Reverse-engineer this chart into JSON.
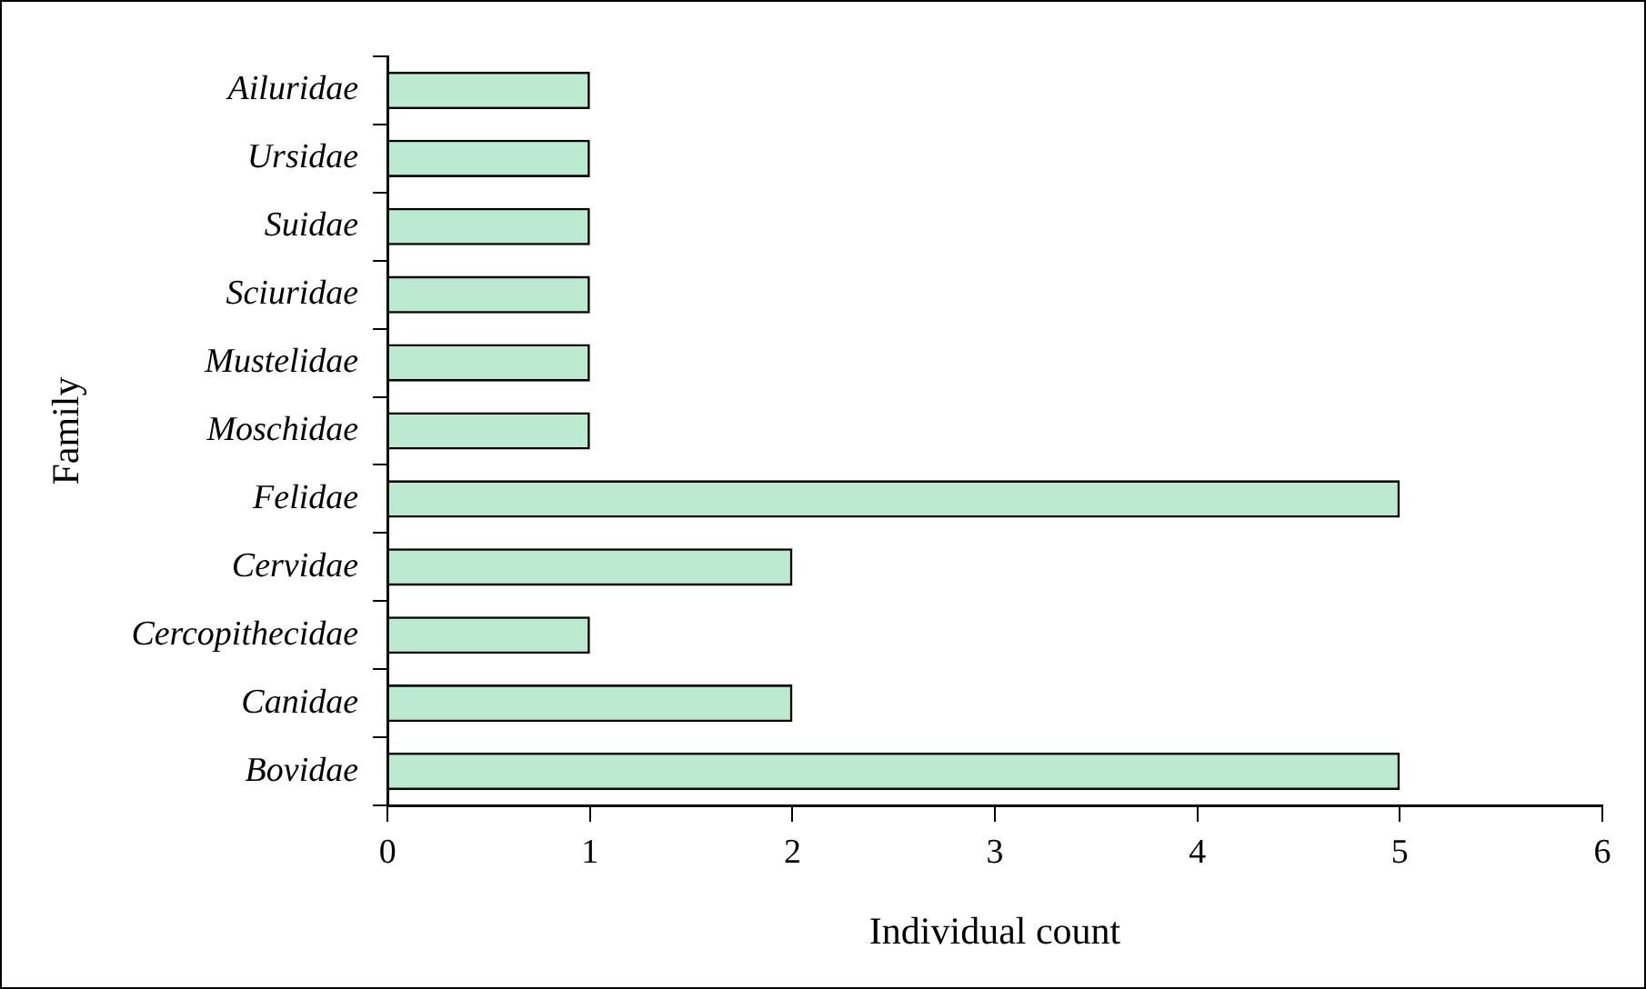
{
  "chart_data": {
    "type": "bar",
    "orientation": "horizontal",
    "xlabel": "Individual count",
    "ylabel": "Family",
    "categories": [
      "Ailuridae",
      "Ursidae",
      "Suidae",
      "Sciuridae",
      "Mustelidae",
      "Moschidae",
      "Felidae",
      "Cervidae",
      "Cercopithecidae",
      "Canidae",
      "Bovidae"
    ],
    "values": [
      1,
      1,
      1,
      1,
      1,
      1,
      5,
      2,
      1,
      2,
      5
    ],
    "color": "#00b050",
    "xlim": [
      0,
      6
    ],
    "xticks": [
      0,
      1,
      2,
      3,
      4,
      5,
      6
    ],
    "grid": false,
    "legend": false
  }
}
